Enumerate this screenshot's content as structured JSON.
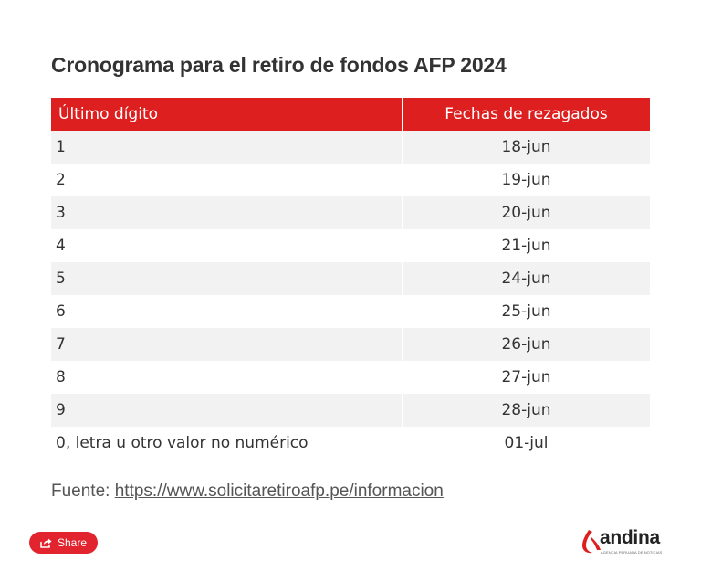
{
  "title": "Cronograma para el retiro de fondos AFP 2024",
  "table": {
    "headers": [
      "Último dígito",
      "Fechas de rezagados"
    ],
    "rows": [
      [
        "1",
        "18-jun"
      ],
      [
        "2",
        "19-jun"
      ],
      [
        "3",
        "20-jun"
      ],
      [
        "4",
        "21-jun"
      ],
      [
        "5",
        "24-jun"
      ],
      [
        "6",
        "25-jun"
      ],
      [
        "7",
        "26-jun"
      ],
      [
        "8",
        "27-jun"
      ],
      [
        "9",
        "28-jun"
      ],
      [
        "0, letra u otro valor no numérico",
        "01-jul"
      ]
    ]
  },
  "source": {
    "label": "Fuente: ",
    "link_text": "https://www.solicitaretiroafp.pe/informacion"
  },
  "share": {
    "label": "Share",
    "icon": "share-icon"
  },
  "logo": {
    "name": "andina",
    "tagline": "AGENCIA PERUANA DE NOTICIAS",
    "icon": "andina-logo-mark"
  },
  "colors": {
    "header_bg": "#dd1f1f",
    "stripe_bg": "#f2f2f2",
    "share_bg": "#e1242e"
  }
}
